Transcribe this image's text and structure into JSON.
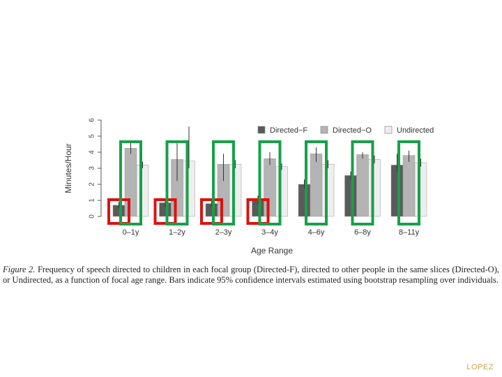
{
  "chart_data": {
    "type": "bar",
    "title": "",
    "xlabel": "Age Range",
    "ylabel": "Minutes/Hour",
    "ylim": [
      0,
      6
    ],
    "yticks": [
      "0",
      "1",
      "2",
      "3",
      "4",
      "5",
      "6"
    ],
    "categories": [
      "0–1y",
      "1–2y",
      "2–3y",
      "3–4y",
      "4–6y",
      "6–8y",
      "8–11y"
    ],
    "series": [
      {
        "name": "Directed−F",
        "color": "#5a5a5a",
        "values": [
          0.7,
          0.85,
          0.8,
          1.05,
          2.0,
          2.55,
          3.2
        ]
      },
      {
        "name": "Directed−O",
        "color": "#b4b4b4",
        "values": [
          4.25,
          3.55,
          3.25,
          3.6,
          3.9,
          3.85,
          3.8
        ]
      },
      {
        "name": "Undirected",
        "color": "#eeeeee",
        "values": [
          3.2,
          3.45,
          3.25,
          3.1,
          3.25,
          3.55,
          3.35
        ]
      }
    ],
    "error_bars": {
      "Directed−F": [
        [
          0.5,
          0.9
        ],
        [
          0.6,
          1.1
        ],
        [
          0.6,
          1.0
        ],
        [
          0.8,
          1.3
        ],
        [
          1.7,
          2.3
        ],
        [
          2.3,
          2.8
        ],
        [
          2.8,
          3.9
        ]
      ],
      "Directed−O": [
        [
          3.9,
          4.6
        ],
        [
          2.2,
          4.6
        ],
        [
          2.2,
          3.9
        ],
        [
          3.2,
          4.0
        ],
        [
          3.4,
          4.3
        ],
        [
          3.6,
          4.0
        ],
        [
          3.4,
          4.1
        ]
      ],
      "Undirected": [
        [
          3.0,
          3.4
        ],
        [
          3.0,
          5.6
        ],
        [
          3.0,
          3.5
        ],
        [
          2.9,
          3.3
        ],
        [
          3.0,
          3.5
        ],
        [
          3.3,
          3.8
        ],
        [
          3.1,
          3.6
        ]
      ]
    },
    "legend_position": "top-right",
    "highlights": {
      "red": {
        "series": "Directed−F",
        "categories": [
          "0–1y",
          "1–2y",
          "2–3y",
          "3–4y"
        ]
      },
      "green": {
        "series": "Directed−O",
        "categories": [
          "0–1y",
          "1–2y",
          "2–3y",
          "3–4y",
          "4–6y",
          "6–8y",
          "8–11y"
        ]
      }
    }
  },
  "caption": {
    "figure_label": "Figure 2.",
    "text": "Frequency of speech directed to children in each focal group (Directed-F), directed to other people in the same slices (Directed-O), or Undirected, as a function of focal age range. Bars indicate 95% confidence intervals estimated using bootstrap resampling over individuals."
  },
  "footer": {
    "author": "LOPEZ"
  },
  "colors": {
    "highlight_red": "#dd1111",
    "highlight_green": "#18a04a",
    "axis": "#555555"
  }
}
